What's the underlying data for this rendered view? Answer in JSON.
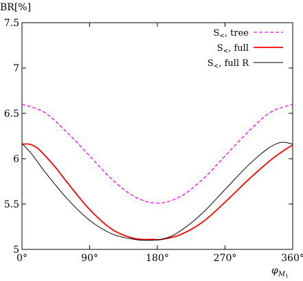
{
  "chart_data": {
    "type": "line",
    "ylabel": "BR[%]",
    "xlabel": {
      "base": "φ",
      "sub": "M",
      "subsub": "1"
    },
    "xlim": [
      0,
      360
    ],
    "ylim": [
      5,
      7.5
    ],
    "x_ticks": [
      0,
      90,
      180,
      270,
      360
    ],
    "x_tick_labels": [
      "0°",
      "90°",
      "180°",
      "270°",
      "360°"
    ],
    "y_ticks": [
      5,
      5.5,
      6,
      6.5,
      7,
      7.5
    ],
    "y_tick_labels": [
      "5",
      "5.5",
      "6",
      "6.5",
      "7",
      "7.5"
    ],
    "grid": false,
    "legend_position": "top-right",
    "series": [
      {
        "name_main": "S",
        "name_sub": "<",
        "name_rest": ", tree",
        "color": "#ff00ff",
        "dash": "5,3",
        "width": 1.3,
        "x": [
          0,
          30,
          60,
          90,
          120,
          150,
          180,
          210,
          240,
          270,
          300,
          330,
          360
        ],
        "y": [
          6.6,
          6.51,
          6.29,
          6.03,
          5.77,
          5.58,
          5.51,
          5.58,
          5.77,
          6.03,
          6.29,
          6.51,
          6.6
        ]
      },
      {
        "name_main": "S",
        "name_sub": "<",
        "name_rest": ", full",
        "color": "#ff0000",
        "dash": "",
        "width": 1.8,
        "x": [
          0,
          10,
          20,
          30,
          45,
          60,
          90,
          120,
          150,
          175,
          185,
          210,
          240,
          270,
          300,
          330,
          350,
          360
        ],
        "y": [
          6.16,
          6.16,
          6.12,
          6.04,
          5.9,
          5.74,
          5.44,
          5.22,
          5.12,
          5.11,
          5.11,
          5.16,
          5.3,
          5.52,
          5.76,
          5.98,
          6.1,
          6.15
        ]
      },
      {
        "name_main": "S",
        "name_sub": "<",
        "name_rest": ", full R",
        "color": "#000000",
        "dash": "",
        "width": 1.0,
        "x": [
          0,
          15,
          30,
          60,
          90,
          120,
          150,
          170,
          190,
          210,
          240,
          270,
          300,
          325,
          340,
          350,
          360
        ],
        "y": [
          6.17,
          6.03,
          5.86,
          5.56,
          5.32,
          5.17,
          5.11,
          5.1,
          5.12,
          5.2,
          5.4,
          5.66,
          5.92,
          6.1,
          6.17,
          6.18,
          6.16
        ]
      }
    ]
  }
}
